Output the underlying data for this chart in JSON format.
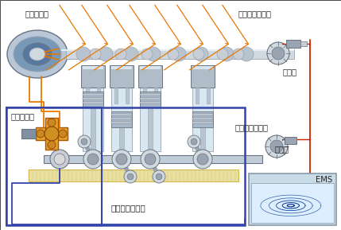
{
  "bg": "#f2f2f2",
  "white": "#ffffff",
  "labels": {
    "phaser": "相位調節器",
    "cam_sensor": "凸輪位置傳感器",
    "cam_disk": "信號盤",
    "ocv": "機油控制閥",
    "crank_sensor": "曲軸位置傳感器",
    "crank_disk": "信號盤",
    "ems_sys": "發動機管理系統",
    "ems": "EMS"
  },
  "border_blue": "#3344aa",
  "red": "#cc2200",
  "orange": "#e87800",
  "gray_light": "#c8cdd6",
  "gray_mid": "#9aa4b0",
  "gray_dark": "#6a7480",
  "silver": "#d0d8e0",
  "silver2": "#b8c4d0",
  "gold": "#d4b84a",
  "sand": "#e8dfa0",
  "cyl_fill": "#b0bcc8",
  "piston_fill": "#a8b8c8",
  "shaft_fill": "#c0ccd8",
  "ems_bg": "#c8dce8",
  "ems_border": "#8899aa"
}
